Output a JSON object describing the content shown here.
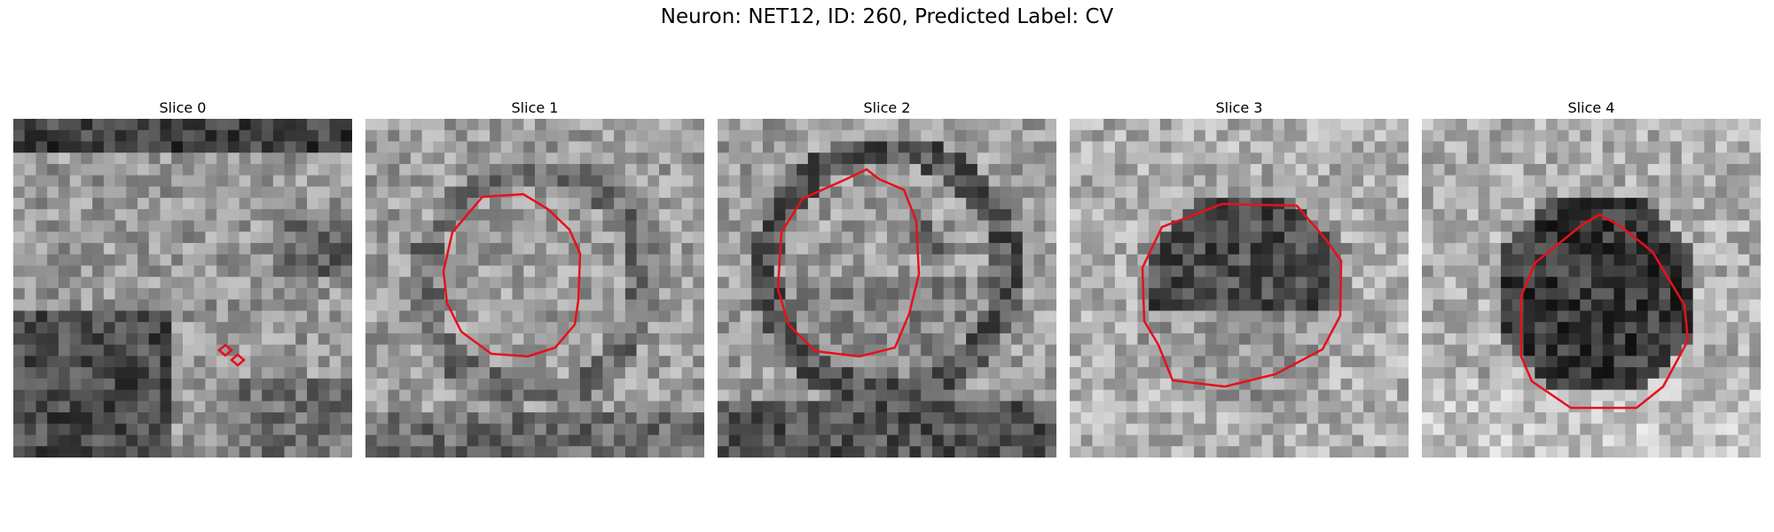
{
  "figure": {
    "title": "Neuron: NET12, ID: 260, Predicted Label: CV"
  },
  "panels": [
    {
      "title": "Slice 0"
    },
    {
      "title": "Slice 1"
    },
    {
      "title": "Slice 2"
    },
    {
      "title": "Slice 3"
    },
    {
      "title": "Slice 4"
    }
  ],
  "colors": {
    "contour": "#e8101a",
    "background": "#ffffff"
  }
}
